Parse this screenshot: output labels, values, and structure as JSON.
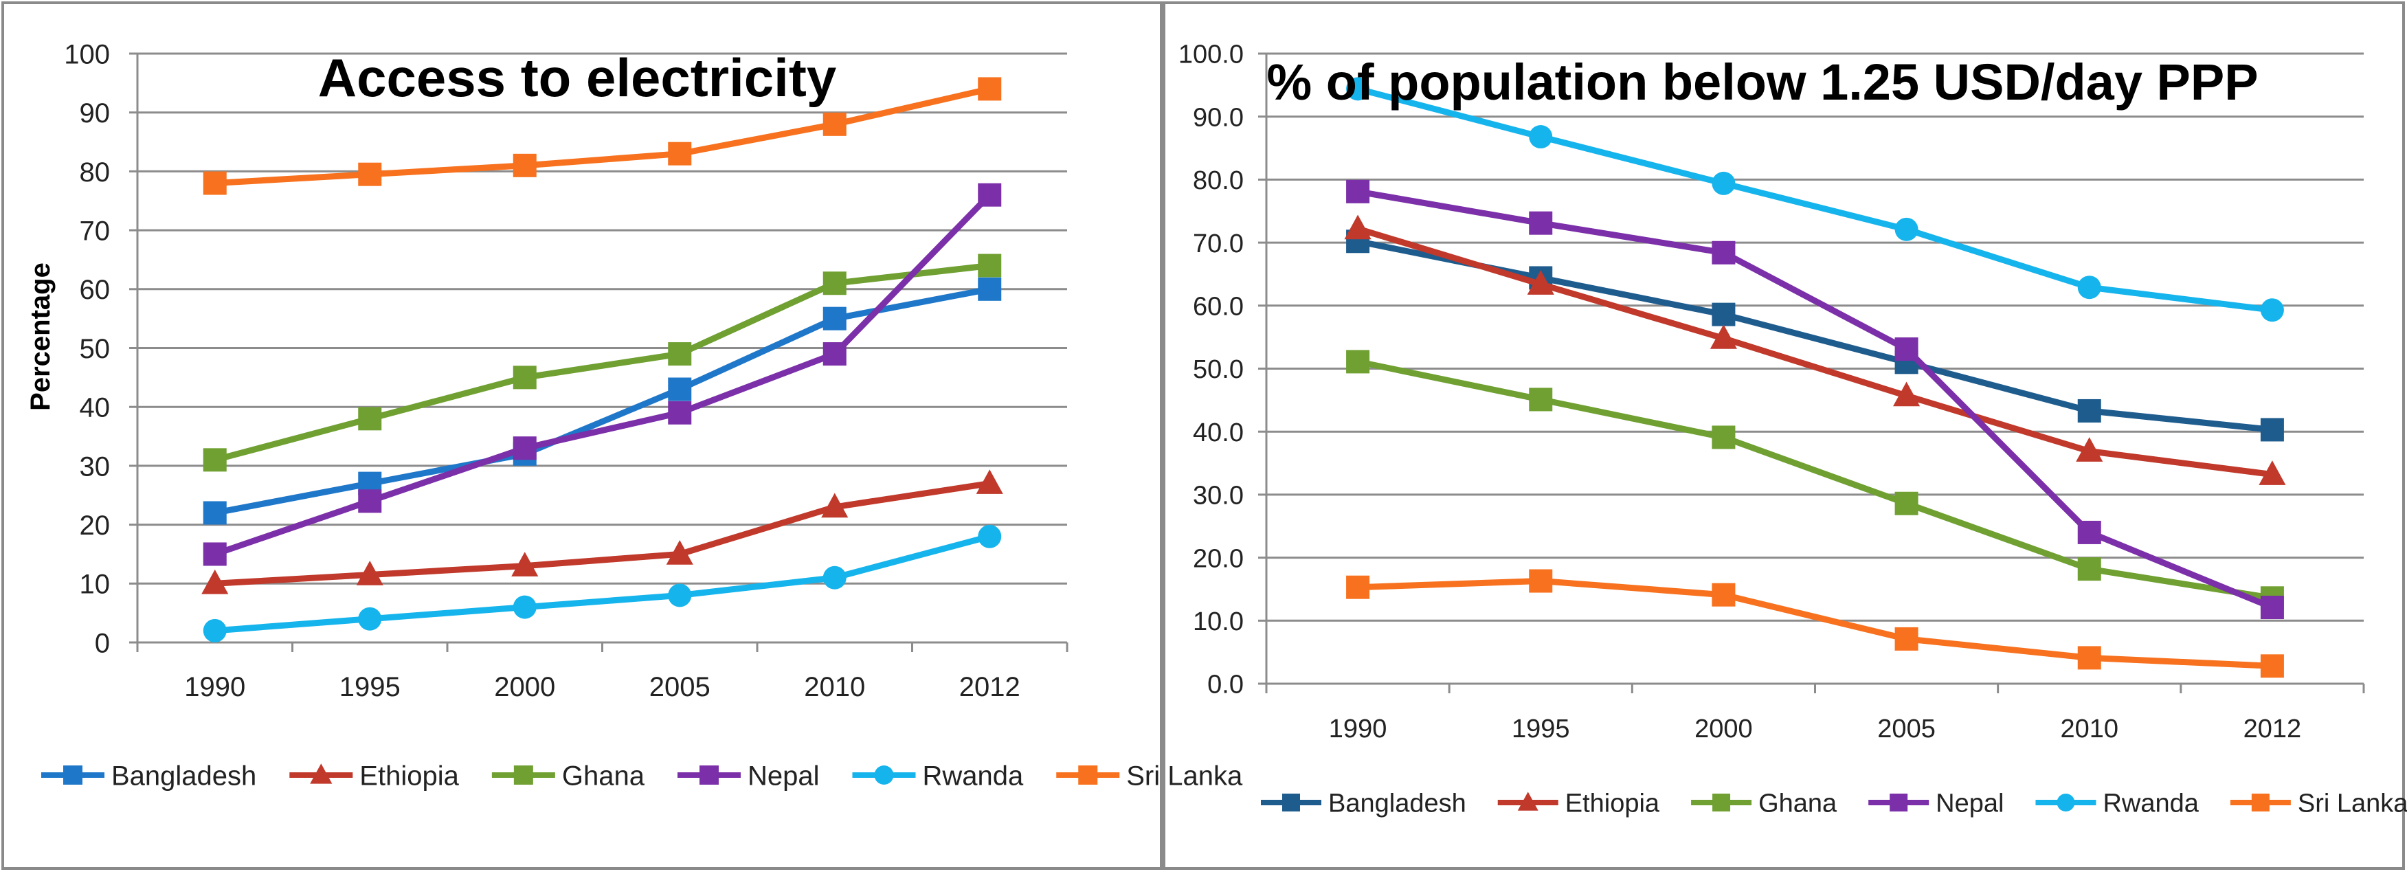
{
  "chart_data": [
    {
      "type": "line",
      "title": "Access to electricity",
      "xlabel": "",
      "ylabel": "Percentage",
      "categories": [
        "1990",
        "1995",
        "2000",
        "2005",
        "2010",
        "2012"
      ],
      "ylim": [
        0,
        100
      ],
      "yticks": [
        "0",
        "10",
        "20",
        "30",
        "40",
        "50",
        "60",
        "70",
        "80",
        "90",
        "100"
      ],
      "grid": true,
      "legend": "bottom",
      "series": [
        {
          "name": "Bangladesh",
          "color": "#1F77C9",
          "marker": "square",
          "values": [
            22,
            27,
            32,
            43,
            55,
            60
          ]
        },
        {
          "name": "Ethiopia",
          "color": "#C0392B",
          "marker": "triangle",
          "values": [
            10,
            11.5,
            13,
            15,
            23,
            27
          ]
        },
        {
          "name": "Ghana",
          "color": "#6FA031",
          "marker": "square",
          "values": [
            31,
            38,
            45,
            49,
            61,
            64
          ]
        },
        {
          "name": "Nepal",
          "color": "#7B2FA8",
          "marker": "square",
          "values": [
            15,
            24,
            33,
            39,
            49,
            76
          ]
        },
        {
          "name": "Rwanda",
          "color": "#16B4EC",
          "marker": "circle",
          "values": [
            2,
            4,
            6,
            8,
            11,
            18
          ]
        },
        {
          "name": "Sri Lanka",
          "color": "#F7711E",
          "marker": "square",
          "values": [
            78,
            79.5,
            81,
            83,
            88,
            94
          ]
        }
      ]
    },
    {
      "type": "line",
      "title": "% of population below 1.25 USD/day PPP",
      "xlabel": "",
      "ylabel": "",
      "categories": [
        "1990",
        "1995",
        "2000",
        "2005",
        "2010",
        "2012"
      ],
      "ylim": [
        0,
        100
      ],
      "yticks": [
        "0.0",
        "10.0",
        "20.0",
        "30.0",
        "40.0",
        "50.0",
        "60.0",
        "70.0",
        "80.0",
        "90.0",
        "100.0"
      ],
      "grid": true,
      "legend": "bottom",
      "series": [
        {
          "name": "Bangladesh",
          "color": "#1F5C8E",
          "marker": "square",
          "values": [
            70.2,
            64.4,
            58.6,
            51,
            43.3,
            40.3
          ]
        },
        {
          "name": "Ethiopia",
          "color": "#C0392B",
          "marker": "triangle",
          "values": [
            72.2,
            63.4,
            54.8,
            45.7,
            36.9,
            33.2
          ]
        },
        {
          "name": "Ghana",
          "color": "#6FA031",
          "marker": "square",
          "values": [
            51.1,
            45.1,
            39.1,
            28.6,
            18.2,
            13.6
          ]
        },
        {
          "name": "Nepal",
          "color": "#7B2FA8",
          "marker": "square",
          "values": [
            78.1,
            73.1,
            68.4,
            53.1,
            24,
            12.1
          ]
        },
        {
          "name": "Rwanda",
          "color": "#16B4EC",
          "marker": "circle",
          "values": [
            94.4,
            86.8,
            79.4,
            72.1,
            62.9,
            59.3
          ]
        },
        {
          "name": "Sri Lanka",
          "color": "#F7711E",
          "marker": "square",
          "values": [
            15.3,
            16.3,
            14.1,
            7.1,
            4.1,
            2.8
          ]
        }
      ]
    }
  ]
}
